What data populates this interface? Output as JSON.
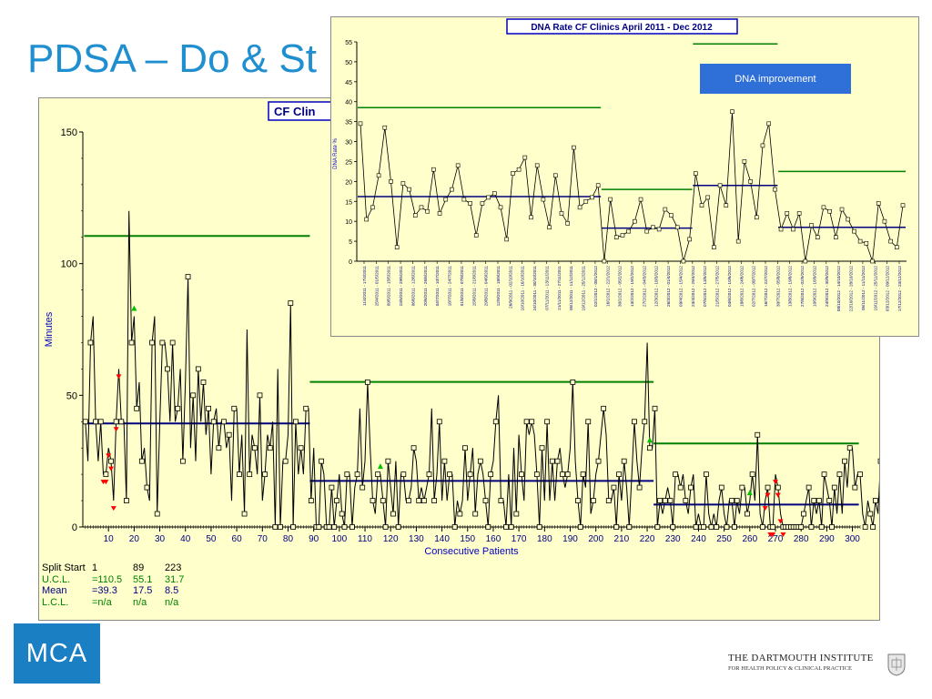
{
  "slide": {
    "title": "PDSA – Do & St",
    "badge": "DNA improvement",
    "logo_text": "MCA",
    "institute_line1": "THE DARTMOUTH INSTITUTE",
    "institute_line2": "FOR HEALTH POLICY & CLINICAL PRACTICE"
  },
  "chart_data": [
    {
      "type": "line",
      "title": "CF Clin",
      "xlabel": "Consecutive Patients",
      "ylabel": "Minutes",
      "xlim": [
        0,
        303
      ],
      "ylim": [
        0,
        150
      ],
      "x_ticks": [
        10,
        20,
        30,
        40,
        50,
        60,
        70,
        80,
        90,
        100,
        110,
        120,
        130,
        140,
        150,
        160,
        170,
        180,
        190,
        200,
        210,
        220,
        230,
        240,
        250,
        260,
        270,
        280,
        290,
        300
      ],
      "y_ticks": [
        0,
        50,
        100,
        150
      ],
      "series": [
        {
          "values": [
            40,
            25,
            70,
            80,
            40,
            25,
            40,
            20,
            20,
            30,
            25,
            10,
            40,
            60,
            40,
            40,
            10,
            120,
            70,
            80,
            45,
            55,
            25,
            30,
            15,
            10,
            70,
            80,
            5,
            40,
            70,
            70,
            60,
            40,
            70,
            40,
            45,
            60,
            25,
            55,
            95,
            30,
            50,
            25,
            60,
            40,
            55,
            35,
            45,
            20,
            40,
            45,
            30,
            40,
            40,
            30,
            35,
            10,
            45,
            45,
            20,
            35,
            5,
            75,
            20,
            35,
            30,
            20,
            50,
            10,
            20,
            35,
            30,
            40,
            0,
            60,
            0,
            25,
            25,
            35,
            85,
            0,
            40,
            20,
            30,
            20,
            45,
            45,
            10,
            30,
            0,
            0,
            25,
            20,
            0,
            0,
            15,
            0,
            10,
            20,
            5,
            0,
            20,
            20,
            0,
            15,
            20,
            45,
            15,
            25,
            55,
            30,
            10,
            5,
            20,
            20,
            10,
            0,
            25,
            15,
            5,
            25,
            0,
            20,
            20,
            10,
            10,
            15,
            30,
            25,
            10,
            15,
            10,
            15,
            20,
            45,
            10,
            20,
            40,
            10,
            25,
            10,
            20,
            20,
            0,
            10,
            5,
            10,
            30,
            10,
            20,
            30,
            5,
            20,
            25,
            20,
            10,
            0,
            20,
            25,
            40,
            50,
            10,
            10,
            0,
            20,
            0,
            30,
            5,
            35,
            20,
            10,
            40,
            35,
            40,
            35,
            20,
            0,
            30,
            10,
            40,
            10,
            25,
            10,
            25,
            30,
            20,
            15,
            20,
            30,
            55,
            25,
            10,
            0,
            20,
            15,
            40,
            5,
            10,
            20,
            25,
            35,
            45,
            35,
            10,
            10,
            15,
            0,
            20,
            10,
            25,
            15,
            0,
            20,
            40,
            25,
            15,
            30,
            40,
            70,
            30,
            30,
            45,
            0,
            10,
            5,
            10,
            15,
            10,
            0,
            20,
            20,
            15,
            20,
            10,
            5,
            15,
            20,
            0,
            5,
            0,
            0,
            20,
            5,
            0,
            5,
            0,
            10,
            15,
            5,
            0,
            10,
            10,
            0,
            10,
            5,
            15,
            15,
            5,
            10,
            20,
            10,
            35,
            5,
            0,
            10,
            15,
            0,
            0,
            20,
            15,
            5,
            0,
            0,
            0,
            0,
            0,
            0,
            0,
            0,
            5,
            10,
            15,
            0,
            10,
            5,
            10,
            0,
            20,
            15,
            10,
            0,
            15,
            5,
            20,
            5,
            25,
            15,
            30,
            30,
            15,
            20,
            20,
            5,
            0,
            10,
            5,
            0,
            10,
            5,
            25,
            15,
            0,
            0
          ],
          "limits_note": "Split Start rows"
        }
      ],
      "phases": [
        {
          "start": 1,
          "end": 88,
          "ucl": 110.5,
          "mean": 39.3
        },
        {
          "start": 89,
          "end": 222,
          "ucl": 55.1,
          "mean": 17.5
        },
        {
          "start": 223,
          "end": 302,
          "ucl": 31.7,
          "mean": 8.5
        }
      ],
      "signals_above": [
        20,
        116,
        221,
        260
      ],
      "signals_below": [
        8,
        9,
        10,
        11,
        12,
        13,
        14,
        266,
        267,
        268,
        269,
        270,
        271,
        272,
        273
      ],
      "stats_table": {
        "rows": [
          {
            "label": "Split Start",
            "a": "1",
            "b": "89",
            "c": "223"
          },
          {
            "label": "U.C.L.",
            "a": "=110.5",
            "b": "55.1",
            "c": "31.7"
          },
          {
            "label": "Mean",
            "a": "=39.3",
            "b": "17.5",
            "c": "8.5"
          },
          {
            "label": "L.C.L.",
            "a": "=n/a",
            "b": "n/a",
            "c": "n/a"
          }
        ]
      }
    },
    {
      "type": "line",
      "title": "DNA Rate CF Clinics April 2011 - Dec 2012",
      "ylabel": "DNA Rate %",
      "ylim": [
        0,
        55
      ],
      "y_ticks": [
        0,
        5,
        10,
        15,
        20,
        25,
        30,
        35,
        40,
        45,
        50,
        55
      ],
      "x_labels": [
        "11/4/2011 - 17/4/2011",
        "25/4/2011 - 01/5/2011",
        "09/5/2011 - 15/5/2011",
        "23/5/2011 - 29/5/2011",
        "06/6/2011 - 12/6/2011",
        "20/6/2011 - 26/6/2011",
        "04/7/2011 - 10/7/2011",
        "18/7/2011 - 24/7/2011",
        "01/8/2011 - 07/8/2011",
        "15/8/2011 - 21/8/2011",
        "29/8/2011 - 04/9/2011",
        "12/9/2011 - 18/9/2011",
        "26/9/2011 - 02/10/2011",
        "10/10/2011 - 16/10/2011",
        "24/10/2011 - 30/10/2011",
        "07/11/2011 - 13/11/2011",
        "21/11/2011 - 27/11/2011",
        "05/12/2011 - 11/12/2011",
        "19/12/2011 - 25/12/2011",
        "02/1/2012 - 08/1/2012",
        "16/1/2012 - 22/1/2012",
        "30/1/2012 - 05/2/2012",
        "13/2/2012 - 19/2/2012",
        "27/2/2012 - 04/3/2012",
        "12/3/2012 - 18/3/2012",
        "26/3/2012 - 01/4/2012",
        "09/4/2012 - 15/4/2012",
        "23/4/2012 - 29/4/2012",
        "07/5/2012 - 13/5/2012",
        "21/5/2012 - 27/5/2012",
        "04/6/2012 - 10/6/2012",
        "18/6/2012 - 24/6/2012",
        "02/7/2012 - 08/7/2012",
        "16/7/2012 - 22/7/2012",
        "30/7/2012 - 05/8/2012",
        "13/8/2012 - 19/8/2012",
        "27/8/2012 - 02/9/2012",
        "10/9/2012 - 16/9/2012",
        "24/9/2012 - 30/9/2012",
        "08/10/2012 - 14/10/2012",
        "22/10/2012 - 28/10/2012",
        "05/11/2012 - 11/11/2012",
        "19/11/2012 - 25/11/2012",
        "03/12/2012 - 09/12/2012",
        "17/12/2012 - 23/12/2012"
      ],
      "series": [
        {
          "values": [
            34.5,
            10.5,
            13.5,
            21.5,
            33.5,
            20,
            3.5,
            19.5,
            18,
            11.5,
            13.5,
            12.5,
            23,
            12,
            15.5,
            18,
            24,
            15.5,
            14.5,
            6.5,
            14.5,
            16,
            17,
            13.5,
            5.5,
            22,
            23,
            26,
            11,
            24,
            15.5,
            8.5,
            21.5,
            12,
            9.5,
            28.5,
            13.5,
            15,
            16,
            19,
            0,
            15.5,
            6,
            6.5,
            7.5,
            10,
            15.5,
            7.5,
            8.5,
            8,
            13,
            11.5,
            8.5,
            0,
            5.5,
            22,
            14,
            16,
            3.5,
            19,
            14,
            37.5,
            5,
            25,
            20,
            11,
            29,
            34.5,
            18,
            8,
            12,
            8,
            12,
            0,
            9,
            6,
            13.5,
            12.5,
            6,
            13,
            10.5,
            7.5,
            5,
            4.5,
            0,
            14.5,
            10,
            5,
            3.5,
            14
          ]
        }
      ],
      "phases": [
        {
          "start": 1,
          "end": 40,
          "mean": 16.2,
          "ucl": 38.5
        },
        {
          "start": 41,
          "end": 55,
          "mean": 8.3,
          "ucl": 18
        },
        {
          "start": 56,
          "end": 69,
          "mean": 19,
          "ucl": 54.5
        },
        {
          "start": 70,
          "end": 90,
          "mean": 8.5,
          "ucl": 22.5
        }
      ]
    }
  ]
}
